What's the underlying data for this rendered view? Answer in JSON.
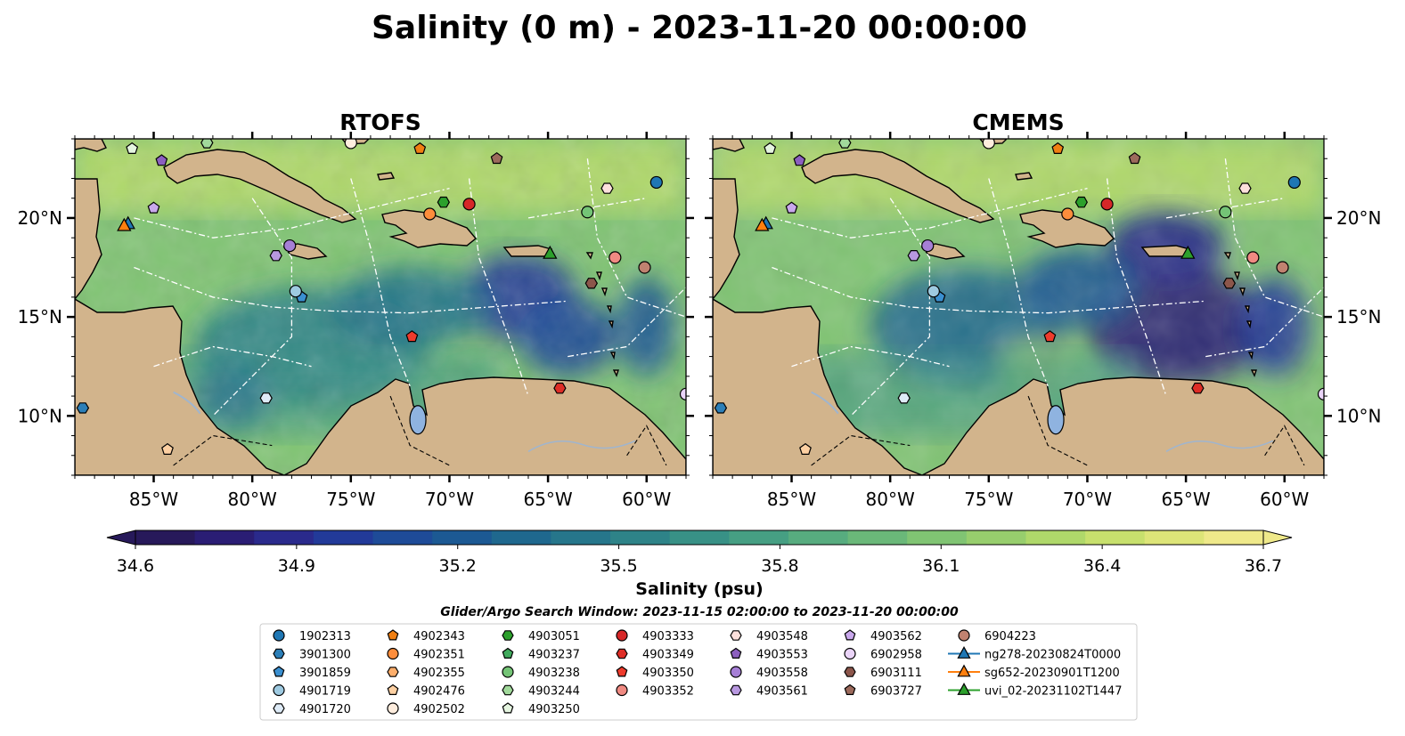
{
  "title": "Salinity (0 m) - 2023-11-20 00:00:00",
  "colors": {
    "land": "#d2b48c",
    "lake": "#8fb3e0",
    "river": "#9fb5cf",
    "colormap": [
      "#27195a",
      "#2a1d74",
      "#2a2a8c",
      "#223a99",
      "#1e4b98",
      "#1c5993",
      "#1f688e",
      "#26768b",
      "#2e8388",
      "#389186",
      "#469f83",
      "#57ac7f",
      "#6ab879",
      "#80c473",
      "#97ce6d",
      "#afd86a",
      "#c7e06d",
      "#dde578",
      "#efe98a"
    ]
  },
  "chart_data": [
    {
      "type": "heatmap",
      "title": "RTOFS",
      "variable": "Salinity",
      "depth_m": 0,
      "xlim": [
        -89,
        -58
      ],
      "ylim": [
        7,
        24
      ],
      "xticks": [
        "85°W",
        "80°W",
        "75°W",
        "70°W",
        "65°W",
        "60°W"
      ],
      "xtick_values": [
        -85,
        -80,
        -75,
        -70,
        -65,
        -60
      ],
      "yticks": [
        "10°N",
        "15°N",
        "20°N"
      ],
      "ytick_values": [
        10,
        15,
        20
      ],
      "ytick_side": "left",
      "fresh_zones": [
        {
          "lon": -66.5,
          "lat": 16.0,
          "rx": 3.0,
          "ry": 2.2,
          "level": 0.18
        },
        {
          "lon": -64.0,
          "lat": 14.0,
          "rx": 2.5,
          "ry": 2.0,
          "level": 0.22
        },
        {
          "lon": -60.0,
          "lat": 14.5,
          "rx": 1.5,
          "ry": 2.5,
          "level": 0.3
        },
        {
          "lon": -77.0,
          "lat": 13.5,
          "rx": 6.0,
          "ry": 3.0,
          "level": 0.42
        },
        {
          "lon": -72.0,
          "lat": 15.5,
          "rx": 4.0,
          "ry": 2.0,
          "level": 0.4
        },
        {
          "lon": -81.0,
          "lat": 11.0,
          "rx": 2.0,
          "ry": 1.5,
          "level": 0.28
        }
      ]
    },
    {
      "type": "heatmap",
      "title": "CMEMS",
      "variable": "Salinity",
      "depth_m": 0,
      "xlim": [
        -89,
        -58
      ],
      "ylim": [
        7,
        24
      ],
      "xticks": [
        "85°W",
        "80°W",
        "75°W",
        "70°W",
        "65°W",
        "60°W"
      ],
      "xtick_values": [
        -85,
        -80,
        -75,
        -70,
        -65,
        -60
      ],
      "yticks": [
        "10°N",
        "15°N",
        "20°N"
      ],
      "ytick_values": [
        10,
        15,
        20
      ],
      "ytick_side": "right",
      "fresh_zones": [
        {
          "lon": -65.5,
          "lat": 14.5,
          "rx": 4.5,
          "ry": 3.0,
          "level": 0.05
        },
        {
          "lon": -66.0,
          "lat": 18.5,
          "rx": 3.0,
          "ry": 1.8,
          "level": 0.12
        },
        {
          "lon": -60.5,
          "lat": 14.5,
          "rx": 1.8,
          "ry": 2.5,
          "level": 0.18
        },
        {
          "lon": -76.0,
          "lat": 14.5,
          "rx": 5.0,
          "ry": 3.0,
          "level": 0.35
        },
        {
          "lon": -70.5,
          "lat": 16.5,
          "rx": 3.0,
          "ry": 2.0,
          "level": 0.3
        },
        {
          "lon": -72.5,
          "lat": 12.5,
          "rx": 2.0,
          "ry": 1.2,
          "level": 0.8
        }
      ]
    }
  ],
  "colorbar": {
    "label": "Salinity (psu)",
    "min": 34.6,
    "max": 36.7,
    "ticks": [
      "34.6",
      "34.9",
      "35.2",
      "35.5",
      "35.8",
      "36.1",
      "36.4",
      "36.7"
    ],
    "tick_values": [
      34.6,
      34.9,
      35.2,
      35.5,
      35.8,
      36.1,
      36.4,
      36.7
    ],
    "extend": "both"
  },
  "search_window": "Glider/Argo Search Window: 2023-11-15 02:00:00 to 2023-11-20 00:00:00",
  "legend": [
    [
      {
        "label": "1902313",
        "marker": "circle",
        "color": "#1f77b4"
      },
      {
        "label": "3901300",
        "marker": "hexagon",
        "color": "#2c7fb8"
      },
      {
        "label": "3901859",
        "marker": "pentagon",
        "color": "#3a8fd0"
      },
      {
        "label": "4901719",
        "marker": "circle",
        "color": "#9ecae1"
      },
      {
        "label": "4901720",
        "marker": "hexagon",
        "color": "#deebf7"
      }
    ],
    [
      {
        "label": "4902343",
        "marker": "pentagon",
        "color": "#f07f12"
      },
      {
        "label": "4902351",
        "marker": "circle",
        "color": "#fd8d3c"
      },
      {
        "label": "4902355",
        "marker": "hexagon",
        "color": "#fdae6b"
      },
      {
        "label": "4902476",
        "marker": "pentagon",
        "color": "#fdd0a2"
      },
      {
        "label": "4902502",
        "marker": "circle",
        "color": "#feedde"
      }
    ],
    [
      {
        "label": "4903051",
        "marker": "hexagon",
        "color": "#2ca02c"
      },
      {
        "label": "4903237",
        "marker": "pentagon",
        "color": "#41ab5d"
      },
      {
        "label": "4903238",
        "marker": "circle",
        "color": "#74c476"
      },
      {
        "label": "4903244",
        "marker": "hexagon",
        "color": "#a1d99b"
      },
      {
        "label": "4903250",
        "marker": "pentagon",
        "color": "#e5f5e0"
      }
    ],
    [
      {
        "label": "4903333",
        "marker": "circle",
        "color": "#d62728"
      },
      {
        "label": "4903349",
        "marker": "hexagon",
        "color": "#de2d26"
      },
      {
        "label": "4903350",
        "marker": "pentagon",
        "color": "#ef3b2c"
      },
      {
        "label": "4903352",
        "marker": "circle",
        "color": "#f08a82"
      }
    ],
    [
      {
        "label": "4903548",
        "marker": "hexagon",
        "color": "#fce0dc"
      },
      {
        "label": "4903553",
        "marker": "pentagon",
        "color": "#8c5fbf"
      },
      {
        "label": "4903558",
        "marker": "circle",
        "color": "#a67fd6"
      },
      {
        "label": "4903561",
        "marker": "hexagon",
        "color": "#b898e0"
      }
    ],
    [
      {
        "label": "4903562",
        "marker": "pentagon",
        "color": "#c9a8ec"
      },
      {
        "label": "6902958",
        "marker": "circle",
        "color": "#ead4f8"
      },
      {
        "label": "6903111",
        "marker": "hexagon",
        "color": "#8c564b"
      },
      {
        "label": "6903727",
        "marker": "pentagon",
        "color": "#9c6a5c"
      }
    ],
    [
      {
        "label": "6904223",
        "marker": "circle",
        "color": "#c08270"
      },
      {
        "label": "ng278-20230824T0000",
        "marker": "triangle-line",
        "color": "#1f77b4"
      },
      {
        "label": "sg652-20230901T1200",
        "marker": "triangle-line",
        "color": "#ff7f0e"
      },
      {
        "label": "uvi_02-20231102T1447",
        "marker": "triangle-line",
        "color": "#2ca02c"
      }
    ]
  ],
  "floats": [
    {
      "id": "1902313",
      "lon": -59.5,
      "lat": 21.8
    },
    {
      "id": "3901300",
      "lon": -88.6,
      "lat": 10.4
    },
    {
      "id": "3901859",
      "lon": -77.5,
      "lat": 16.0
    },
    {
      "id": "4901719",
      "lon": -77.8,
      "lat": 16.3
    },
    {
      "id": "4901720",
      "lon": -79.3,
      "lat": 10.9
    },
    {
      "id": "4902343",
      "lon": -71.5,
      "lat": 23.5
    },
    {
      "id": "4902351",
      "lon": -71.0,
      "lat": 20.2
    },
    {
      "id": "4902476",
      "lon": -84.3,
      "lat": 8.3
    },
    {
      "id": "4902502",
      "lon": -75.0,
      "lat": 23.8
    },
    {
      "id": "4903051",
      "lon": -70.3,
      "lat": 20.8
    },
    {
      "id": "4903244",
      "lon": -82.3,
      "lat": 23.8
    },
    {
      "id": "4903250",
      "lon": -86.1,
      "lat": 23.5
    },
    {
      "id": "4903333",
      "lon": -69.0,
      "lat": 20.7
    },
    {
      "id": "4903349",
      "lon": -64.4,
      "lat": 11.4
    },
    {
      "id": "4903350",
      "lon": -71.9,
      "lat": 14.0
    },
    {
      "id": "4903352",
      "lon": -61.6,
      "lat": 18.0
    },
    {
      "id": "4903548",
      "lon": -62.0,
      "lat": 21.5
    },
    {
      "id": "4903553",
      "lon": -84.6,
      "lat": 22.9
    },
    {
      "id": "4903558",
      "lon": -78.1,
      "lat": 18.6
    },
    {
      "id": "4903561",
      "lon": -78.8,
      "lat": 18.1
    },
    {
      "id": "4903562",
      "lon": -85.0,
      "lat": 20.5
    },
    {
      "id": "6902958",
      "lon": -58.0,
      "lat": 11.1
    },
    {
      "id": "6903111",
      "lon": -62.8,
      "lat": 16.7
    },
    {
      "id": "6903727",
      "lon": -67.6,
      "lat": 23.0
    },
    {
      "id": "6904223",
      "lon": -60.1,
      "lat": 17.5
    },
    {
      "id": "4903238",
      "lon": -63.0,
      "lat": 20.3
    },
    {
      "id": "ng278-20230824T0000",
      "lon": -86.3,
      "lat": 19.7
    },
    {
      "id": "sg652-20230901T1200",
      "lon": -86.5,
      "lat": 19.6
    },
    {
      "id": "uvi_02-20231102T1447",
      "lon": -64.9,
      "lat": 18.2
    }
  ]
}
